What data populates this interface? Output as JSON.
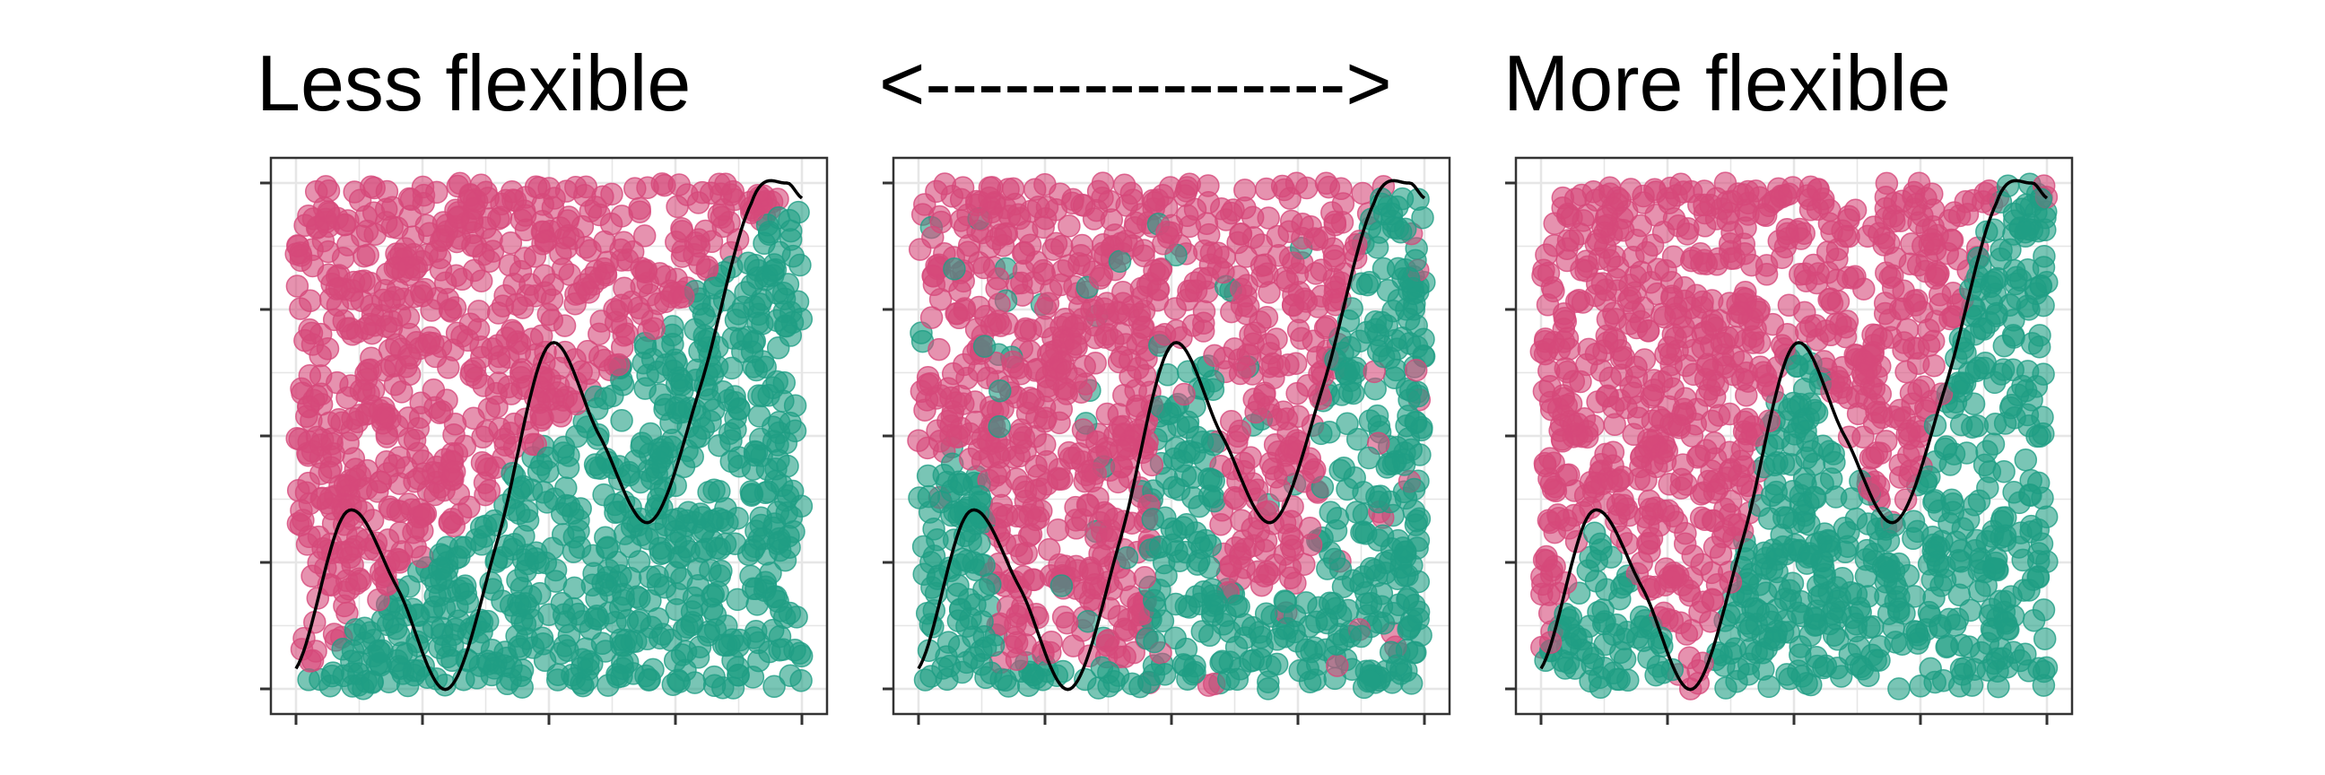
{
  "headings": {
    "left": "Less flexible",
    "middle": "<---------------->",
    "right": "More flexible"
  },
  "colors": {
    "class_a": "#d6497a",
    "class_b": "#1f9e84",
    "curve": "#000000",
    "grid": "#e6e6e6",
    "frame": "#333333"
  },
  "chart_data": [
    {
      "type": "scatter",
      "title": "Less flexible",
      "x_range": [
        0,
        1
      ],
      "y_range": [
        0,
        1
      ],
      "grid": true,
      "tick_labels": false,
      "series": [
        {
          "class": "a",
          "color": "#d6497a",
          "region": "above diagonal line y = x"
        },
        {
          "class": "b",
          "color": "#1f9e84",
          "region": "below diagonal line y = x"
        }
      ],
      "boundary": {
        "type": "line",
        "points": [
          [
            0,
            0
          ],
          [
            1,
            1
          ]
        ]
      },
      "true_curve": {
        "x": [
          0,
          0.1,
          0.2,
          0.3,
          0.4,
          0.5,
          0.6,
          0.7,
          0.8,
          0.9,
          0.97,
          1.0
        ],
        "y": [
          0.04,
          0.35,
          0.2,
          0.0,
          0.3,
          0.68,
          0.5,
          0.33,
          0.6,
          0.96,
          1.0,
          0.97
        ]
      }
    },
    {
      "type": "scatter",
      "title": "<---------------->",
      "x_range": [
        0,
        1
      ],
      "y_range": [
        0,
        1
      ],
      "grid": true,
      "tick_labels": false,
      "series": [
        {
          "class": "a",
          "color": "#d6497a",
          "region": "above moderately flexible boundary"
        },
        {
          "class": "b",
          "color": "#1f9e84",
          "region": "below moderately flexible boundary"
        }
      ],
      "boundary": {
        "type": "step",
        "points": [
          [
            0,
            0.45
          ],
          [
            0.12,
            0.45
          ],
          [
            0.16,
            0.05
          ],
          [
            0.45,
            0.05
          ],
          [
            0.47,
            0.68
          ],
          [
            0.58,
            0.68
          ],
          [
            0.6,
            0.2
          ],
          [
            0.78,
            0.2
          ],
          [
            0.8,
            0.6
          ],
          [
            0.9,
            0.98
          ],
          [
            1.0,
            0.98
          ]
        ]
      },
      "true_curve": {
        "x": [
          0,
          0.1,
          0.2,
          0.3,
          0.4,
          0.5,
          0.6,
          0.7,
          0.8,
          0.9,
          0.97,
          1.0
        ],
        "y": [
          0.04,
          0.35,
          0.2,
          0.0,
          0.3,
          0.68,
          0.5,
          0.33,
          0.6,
          0.96,
          1.0,
          0.97
        ]
      }
    },
    {
      "type": "scatter",
      "title": "More flexible",
      "x_range": [
        0,
        1
      ],
      "y_range": [
        0,
        1
      ],
      "grid": true,
      "tick_labels": false,
      "series": [
        {
          "class": "a",
          "color": "#d6497a",
          "region": "above the true curve"
        },
        {
          "class": "b",
          "color": "#1f9e84",
          "region": "below the true curve"
        }
      ],
      "boundary": {
        "type": "follows_true_curve"
      },
      "true_curve": {
        "x": [
          0,
          0.1,
          0.2,
          0.3,
          0.4,
          0.5,
          0.6,
          0.7,
          0.8,
          0.9,
          0.97,
          1.0
        ],
        "y": [
          0.04,
          0.35,
          0.2,
          0.0,
          0.3,
          0.68,
          0.5,
          0.33,
          0.6,
          0.96,
          1.0,
          0.97
        ]
      }
    }
  ]
}
